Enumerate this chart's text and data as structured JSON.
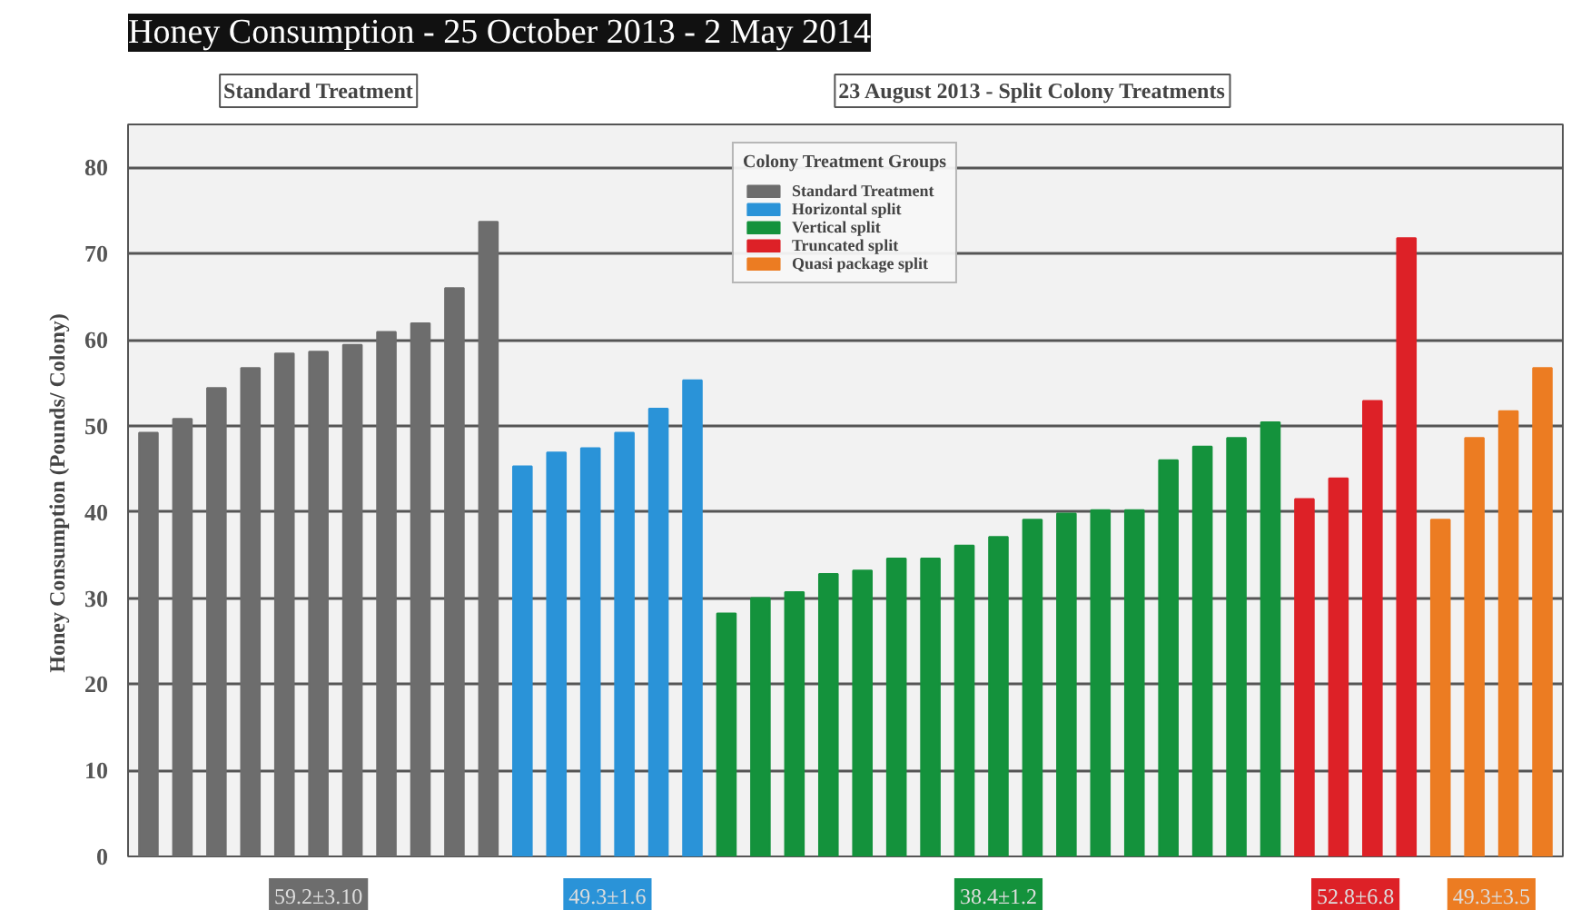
{
  "chart_data": {
    "type": "bar",
    "title": "Honey Consumption - 25 October 2013 - 2 May 2014",
    "ylabel": "Honey Consumption  (Pounds/ Colony)",
    "legend_title": "Colony Treatment Groups",
    "legend": "top",
    "grid": "y",
    "tick_labels": "y",
    "categories": [
      null,
      null,
      null,
      null,
      null,
      null,
      null,
      null,
      null,
      null,
      null,
      null,
      null,
      null,
      null,
      null,
      null,
      null,
      null,
      null,
      null,
      null,
      null,
      null,
      null,
      null,
      null,
      null,
      null,
      null,
      null,
      null,
      null,
      null,
      null,
      null,
      null,
      null,
      null,
      null,
      null,
      null
    ],
    "ylim": [
      0,
      85
    ],
    "yticks": [
      0,
      10,
      20,
      30,
      40,
      50,
      60,
      70,
      80
    ],
    "series": [
      {
        "name": "Standard Treatment",
        "color": "#6d6d6d",
        "values": [
          49.2,
          50.8,
          54.4,
          56.7,
          58.4,
          58.6,
          59.4,
          60.9,
          61.9,
          66.0,
          73.7,
          null,
          null,
          null,
          null,
          null,
          null,
          null,
          null,
          null,
          null,
          null,
          null,
          null,
          null,
          null,
          null,
          null,
          null,
          null,
          null,
          null,
          null,
          null,
          null,
          null,
          null,
          null,
          null,
          null,
          null,
          null
        ]
      },
      {
        "name": "Horizontal split",
        "color": "#2a93d8",
        "values": [
          null,
          null,
          null,
          null,
          null,
          null,
          null,
          null,
          null,
          null,
          null,
          45.3,
          46.9,
          47.4,
          49.2,
          52.0,
          55.3,
          null,
          null,
          null,
          null,
          null,
          null,
          null,
          null,
          null,
          null,
          null,
          null,
          null,
          null,
          null,
          null,
          null,
          null,
          null,
          null,
          null,
          null,
          null,
          null,
          null
        ]
      },
      {
        "name": "Vertical split",
        "color": "#14923c",
        "values": [
          null,
          null,
          null,
          null,
          null,
          null,
          null,
          null,
          null,
          null,
          null,
          null,
          null,
          null,
          null,
          null,
          null,
          28.2,
          30.0,
          30.7,
          32.8,
          33.2,
          34.6,
          34.6,
          36.1,
          37.1,
          39.1,
          39.8,
          40.2,
          40.2,
          46.0,
          47.6,
          48.6,
          50.4,
          null,
          null,
          null,
          null,
          null,
          null,
          null,
          null
        ]
      },
      {
        "name": "Truncated split",
        "color": "#dd2127",
        "values": [
          null,
          null,
          null,
          null,
          null,
          null,
          null,
          null,
          null,
          null,
          null,
          null,
          null,
          null,
          null,
          null,
          null,
          null,
          null,
          null,
          null,
          null,
          null,
          null,
          null,
          null,
          null,
          null,
          null,
          null,
          null,
          null,
          null,
          null,
          41.5,
          43.9,
          52.9,
          71.8,
          null,
          null,
          null,
          null
        ]
      },
      {
        "name": "Quasi package split",
        "color": "#ec7c22",
        "values": [
          null,
          null,
          null,
          null,
          null,
          null,
          null,
          null,
          null,
          null,
          null,
          null,
          null,
          null,
          null,
          null,
          null,
          null,
          null,
          null,
          null,
          null,
          null,
          null,
          null,
          null,
          null,
          null,
          null,
          null,
          null,
          null,
          null,
          null,
          null,
          null,
          null,
          null,
          39.1,
          48.6,
          51.7,
          56.7
        ]
      }
    ],
    "annotations": [
      "Standard Treatment",
      "23 August 2013 - Split Colony Treatments",
      "59.2±3.10",
      "49.3±1.6",
      "38.4±1.2",
      "52.8±6.8",
      "49.3±3.5"
    ]
  }
}
